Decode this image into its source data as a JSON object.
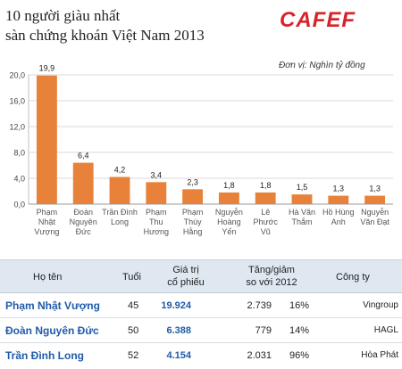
{
  "header": {
    "title_line1": "10 người giàu nhất",
    "title_line2": "sàn chứng khoán Việt Nam 2013",
    "logo_text": "CAFEF",
    "unit_note": "Đơn vị: Nghìn tỷ đồng"
  },
  "chart_data": {
    "type": "bar",
    "categories": [
      [
        "Phạm",
        "Nhật",
        "Vượng"
      ],
      [
        "Đoàn",
        "Nguyên",
        "Đức"
      ],
      [
        "Trần Đình",
        "Long"
      ],
      [
        "Phạm",
        "Thu",
        "Hương"
      ],
      [
        "Phạm",
        "Thúy",
        "Hằng"
      ],
      [
        "Nguyễn",
        "Hoàng",
        "Yến"
      ],
      [
        "Lê",
        "Phước",
        "Vũ"
      ],
      [
        "Hà Văn",
        "Thắm"
      ],
      [
        "Hồ Hùng",
        "Anh"
      ],
      [
        "Nguyễn",
        "Văn Đạt"
      ]
    ],
    "values": [
      19.9,
      6.4,
      4.2,
      3.4,
      2.3,
      1.8,
      1.8,
      1.5,
      1.3,
      1.3
    ],
    "value_labels": [
      "19,9",
      "6,4",
      "4,2",
      "3,4",
      "2,3",
      "1,8",
      "1,8",
      "1,5",
      "1,3",
      "1,3"
    ],
    "y_ticks": [
      0,
      4,
      8,
      12,
      16,
      20
    ],
    "y_tick_labels": [
      "0,0",
      "4,0",
      "8,0",
      "12,0",
      "16,0",
      "20,0"
    ],
    "ylim": [
      0,
      20
    ],
    "grid": true,
    "bar_color": "#e8823a"
  },
  "table": {
    "headers": {
      "name": "Họ tên",
      "age": "Tuổi",
      "value_l1": "Giá trị",
      "value_l2": "cổ phiếu",
      "change_l1": "Tăng/giảm",
      "change_l2": "so với 2012",
      "company": "Công ty"
    },
    "rows": [
      {
        "name": "Phạm Nhật Vượng",
        "age": "45",
        "value": "19.924",
        "change": "2.739",
        "pct": "16%",
        "company": "Vingroup"
      },
      {
        "name": "Đoàn Nguyên Đức",
        "age": "50",
        "value": "6.388",
        "change": "779",
        "pct": "14%",
        "company": "HAGL"
      },
      {
        "name": "Trần Đình Long",
        "age": "52",
        "value": "4.154",
        "change": "2.031",
        "pct": "96%",
        "company": "Hòa Phát"
      }
    ]
  },
  "colors": {
    "brand_red": "#d8232a",
    "name_blue": "#1f5ba8",
    "header_bg": "#dfe8f1"
  }
}
